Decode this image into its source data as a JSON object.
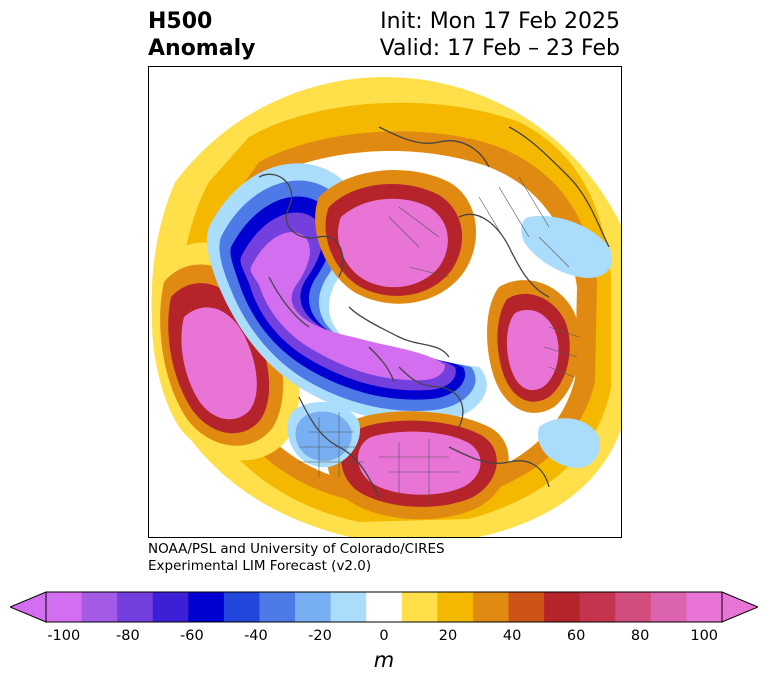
{
  "title": {
    "left_line1": "H500",
    "left_line2": "Anomaly",
    "right_line1": "Init: Mon 17 Feb 2025",
    "right_line2": "Valid: 17 Feb – 23 Feb"
  },
  "credit": {
    "line1": "NOAA/PSL and University of Colorado/CIRES",
    "line2": "Experimental LIM Forecast (v2.0)"
  },
  "colorbar": {
    "unit": "m",
    "ticks": [
      "-100",
      "-80",
      "-60",
      "-40",
      "-20",
      "0",
      "20",
      "40",
      "60",
      "80",
      "100"
    ],
    "colors": [
      "#d36ef0",
      "#a55ae6",
      "#7440dd",
      "#3d1fd6",
      "#0000d0",
      "#2346dc",
      "#4e7ae8",
      "#78aff2",
      "#aadcfc",
      "#ffffff",
      "#ffe04a",
      "#f5b800",
      "#e08a12",
      "#cc5416",
      "#b4242a",
      "#c4344e",
      "#d24e7e",
      "#dc64ae",
      "#e874d6"
    ],
    "under_color": "#d36ef0",
    "over_color": "#e874d6"
  },
  "legend_colors": {
    "strong_negative": "#d36ef0",
    "negative": "#0000d0",
    "neutral": "#ffffff",
    "positive": "#f5b800",
    "strong_positive": "#e874d6"
  }
}
